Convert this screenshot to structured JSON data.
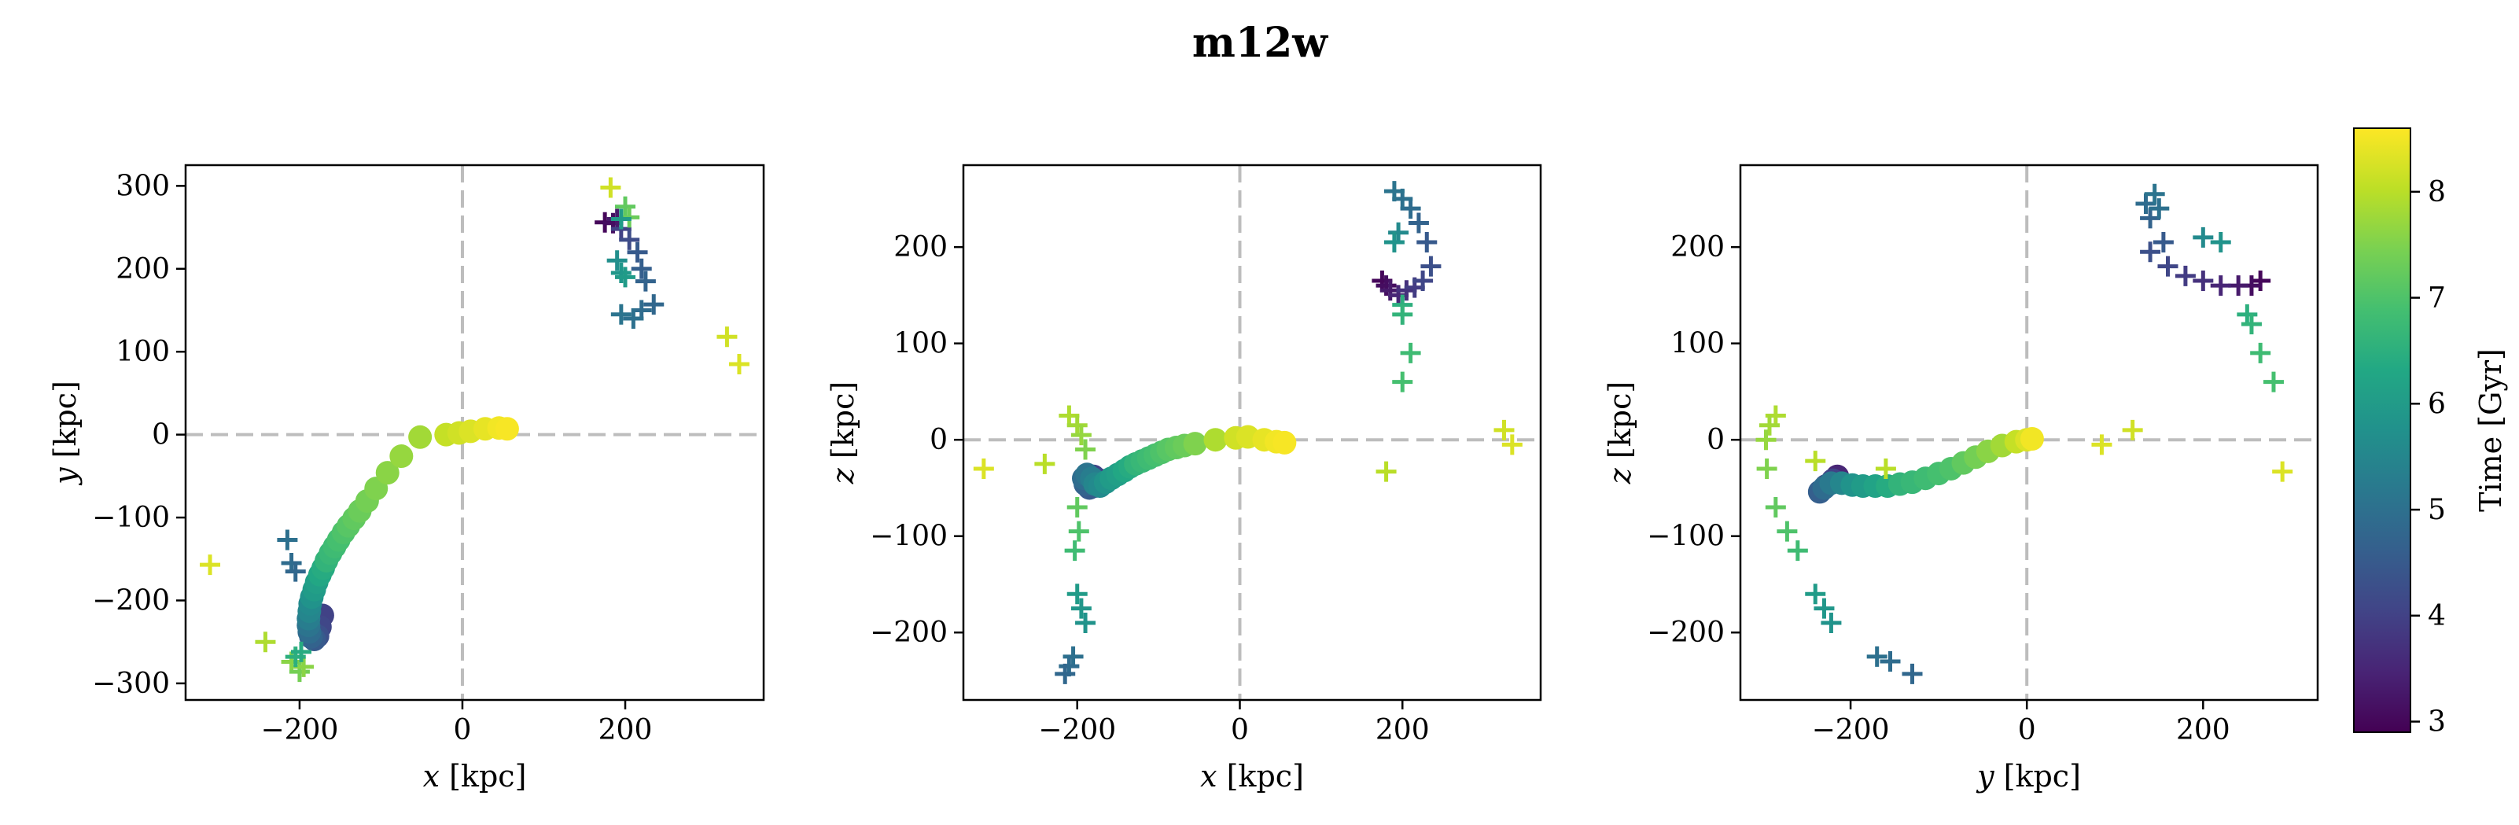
{
  "figure": {
    "title": "m12w"
  },
  "colorbar": {
    "label": "Time [Gyr]",
    "min": 2.9,
    "max": 8.6,
    "ticks": [
      3,
      4,
      5,
      6,
      7,
      8
    ],
    "colormap": "viridis"
  },
  "chart_data": [
    {
      "type": "scatter",
      "xlabel_var": "x",
      "xlabel_unit": " [kpc]",
      "ylabel_var": "y",
      "ylabel_unit": " [kpc]",
      "xlim": [
        -340,
        370
      ],
      "ylim": [
        -320,
        325
      ],
      "xticks": [
        -200,
        0,
        200
      ],
      "yticks": [
        -300,
        -200,
        -100,
        0,
        100,
        200,
        300
      ],
      "reference_lines": {
        "x": 0,
        "y": 0,
        "style": "dashed grey"
      },
      "series": [
        {
          "marker": "circle",
          "points": [
            [
              -172,
              -218,
              4.0
            ],
            [
              -175,
              -232,
              4.1
            ],
            [
              -178,
              -243,
              4.3
            ],
            [
              -182,
              -247,
              4.5
            ],
            [
              -186,
              -244,
              4.7
            ],
            [
              -188,
              -238,
              4.9
            ],
            [
              -189,
              -230,
              5.1
            ],
            [
              -189,
              -222,
              5.3
            ],
            [
              -188,
              -213,
              5.5
            ],
            [
              -187,
              -204,
              5.6
            ],
            [
              -185,
              -196,
              5.8
            ],
            [
              -182,
              -187,
              6.0
            ],
            [
              -179,
              -178,
              6.1
            ],
            [
              -175,
              -169,
              6.3
            ],
            [
              -171,
              -161,
              6.4
            ],
            [
              -167,
              -152,
              6.6
            ],
            [
              -162,
              -143,
              6.7
            ],
            [
              -157,
              -135,
              6.8
            ],
            [
              -152,
              -127,
              6.9
            ],
            [
              -146,
              -118,
              7.0
            ],
            [
              -140,
              -110,
              7.1
            ],
            [
              -133,
              -101,
              7.2
            ],
            [
              -126,
              -92,
              7.3
            ],
            [
              -117,
              -80,
              7.4
            ],
            [
              -106,
              -65,
              7.5
            ],
            [
              -92,
              -46,
              7.6
            ],
            [
              -75,
              -26,
              7.7
            ],
            [
              -52,
              -3,
              7.8
            ],
            [
              -20,
              0,
              8.1
            ],
            [
              -4,
              2,
              8.2
            ],
            [
              10,
              4,
              8.3
            ],
            [
              28,
              7,
              8.4
            ],
            [
              45,
              8,
              8.5
            ],
            [
              55,
              7,
              8.55
            ]
          ]
        },
        {
          "marker": "plus",
          "points": [
            [
              -310,
              -157,
              8.3
            ],
            [
              -242,
              -250,
              7.9
            ],
            [
              -210,
              -274,
              7.6
            ],
            [
              -200,
              -286,
              7.4
            ],
            [
              -195,
              -280,
              7.6
            ],
            [
              -205,
              -268,
              6.5
            ],
            [
              -198,
              -262,
              6.4
            ],
            [
              -215,
              -127,
              5.0
            ],
            [
              -210,
              -155,
              4.9
            ],
            [
              -205,
              -165,
              4.8
            ],
            [
              175,
              256,
              3.0
            ],
            [
              185,
              255,
              3.1
            ],
            [
              190,
              260,
              3.3
            ],
            [
              195,
              248,
              4.0
            ],
            [
              205,
              235,
              4.2
            ],
            [
              215,
              220,
              4.5
            ],
            [
              220,
              200,
              4.6
            ],
            [
              225,
              185,
              4.7
            ],
            [
              235,
              157,
              4.8
            ],
            [
              220,
              150,
              4.9
            ],
            [
              210,
              140,
              5.0
            ],
            [
              195,
              145,
              5.1
            ],
            [
              182,
              298,
              8.2
            ],
            [
              200,
              275,
              7.2
            ],
            [
              205,
              262,
              7.3
            ],
            [
              195,
              260,
              6.0
            ],
            [
              190,
              210,
              5.7
            ],
            [
              195,
              195,
              5.9
            ],
            [
              200,
              190,
              6.0
            ],
            [
              325,
              118,
              8.2
            ],
            [
              340,
              85,
              8.3
            ]
          ]
        }
      ]
    },
    {
      "type": "scatter",
      "xlabel_var": "x",
      "xlabel_unit": " [kpc]",
      "ylabel_var": "z",
      "ylabel_unit": " [kpc]",
      "xlim": [
        -340,
        370
      ],
      "ylim": [
        -270,
        285
      ],
      "xticks": [
        -200,
        0,
        200
      ],
      "yticks": [
        -200,
        -100,
        0,
        100,
        200
      ],
      "reference_lines": {
        "x": 0,
        "y": 0,
        "style": "dashed grey"
      },
      "series": [
        {
          "marker": "circle",
          "points": [
            [
              -180,
              -38,
              4.0
            ],
            [
              -172,
              -42,
              4.1
            ],
            [
              -178,
              -48,
              4.3
            ],
            [
              -185,
              -50,
              4.5
            ],
            [
              -190,
              -46,
              4.7
            ],
            [
              -192,
              -40,
              4.9
            ],
            [
              -188,
              -36,
              5.1
            ],
            [
              -182,
              -40,
              5.3
            ],
            [
              -178,
              -46,
              5.5
            ],
            [
              -172,
              -48,
              5.6
            ],
            [
              -165,
              -44,
              5.8
            ],
            [
              -158,
              -40,
              6.0
            ],
            [
              -150,
              -36,
              6.1
            ],
            [
              -142,
              -32,
              6.3
            ],
            [
              -135,
              -28,
              6.4
            ],
            [
              -128,
              -25,
              6.6
            ],
            [
              -120,
              -22,
              6.7
            ],
            [
              -112,
              -19,
              6.8
            ],
            [
              -104,
              -16,
              6.9
            ],
            [
              -96,
              -13,
              7.0
            ],
            [
              -88,
              -10,
              7.1
            ],
            [
              -78,
              -8,
              7.2
            ],
            [
              -68,
              -6,
              7.3
            ],
            [
              -55,
              -4,
              7.5
            ],
            [
              -30,
              0,
              7.9
            ],
            [
              -5,
              2,
              8.2
            ],
            [
              10,
              3,
              8.3
            ],
            [
              30,
              0,
              8.4
            ],
            [
              45,
              -2,
              8.5
            ],
            [
              55,
              -3,
              8.55
            ]
          ]
        },
        {
          "marker": "plus",
          "points": [
            [
              -315,
              -30,
              8.3
            ],
            [
              -240,
              -25,
              8.0
            ],
            [
              -210,
              25,
              7.9
            ],
            [
              -200,
              15,
              7.8
            ],
            [
              -195,
              5,
              7.7
            ],
            [
              -190,
              -10,
              7.5
            ],
            [
              -200,
              -70,
              7.2
            ],
            [
              -198,
              -95,
              7.0
            ],
            [
              -203,
              -115,
              6.8
            ],
            [
              -200,
              -160,
              6.0
            ],
            [
              -195,
              -175,
              5.9
            ],
            [
              -190,
              -190,
              5.8
            ],
            [
              -205,
              -225,
              5.0
            ],
            [
              -210,
              -235,
              4.9
            ],
            [
              -215,
              -243,
              4.8
            ],
            [
              175,
              165,
              3.0
            ],
            [
              180,
              160,
              3.1
            ],
            [
              185,
              155,
              3.3
            ],
            [
              195,
              150,
              3.5
            ],
            [
              205,
              155,
              3.7
            ],
            [
              215,
              158,
              3.9
            ],
            [
              225,
              165,
              4.1
            ],
            [
              235,
              180,
              4.3
            ],
            [
              230,
              205,
              4.5
            ],
            [
              220,
              225,
              4.7
            ],
            [
              210,
              240,
              4.9
            ],
            [
              200,
              250,
              5.0
            ],
            [
              190,
              258,
              5.1
            ],
            [
              195,
              215,
              5.6
            ],
            [
              190,
              205,
              5.8
            ],
            [
              200,
              140,
              6.5
            ],
            [
              200,
              130,
              6.6
            ],
            [
              210,
              90,
              6.8
            ],
            [
              200,
              60,
              6.9
            ],
            [
              180,
              -33,
              8.0
            ],
            [
              325,
              10,
              8.2
            ],
            [
              335,
              -5,
              8.3
            ]
          ]
        }
      ]
    },
    {
      "type": "scatter",
      "xlabel_var": "y",
      "xlabel_unit": " [kpc]",
      "ylabel_var": "z",
      "ylabel_unit": " [kpc]",
      "xlim": [
        -325,
        330
      ],
      "ylim": [
        -270,
        285
      ],
      "xticks": [
        -200,
        0,
        200
      ],
      "yticks": [
        -200,
        -100,
        0,
        100,
        200
      ],
      "reference_lines": {
        "x": 0,
        "y": 0,
        "style": "dashed grey"
      },
      "series": [
        {
          "marker": "circle",
          "points": [
            [
              -215,
              -38,
              3.5
            ],
            [
              -220,
              -42,
              4.0
            ],
            [
              -228,
              -48,
              4.3
            ],
            [
              -235,
              -54,
              4.6
            ],
            [
              -230,
              -50,
              4.9
            ],
            [
              -222,
              -45,
              5.2
            ],
            [
              -210,
              -45,
              5.5
            ],
            [
              -198,
              -47,
              5.8
            ],
            [
              -186,
              -48,
              6.0
            ],
            [
              -172,
              -48,
              6.2
            ],
            [
              -158,
              -48,
              6.4
            ],
            [
              -144,
              -46,
              6.6
            ],
            [
              -130,
              -44,
              6.7
            ],
            [
              -115,
              -40,
              6.8
            ],
            [
              -100,
              -35,
              6.9
            ],
            [
              -86,
              -30,
              7.0
            ],
            [
              -72,
              -24,
              7.2
            ],
            [
              -58,
              -18,
              7.4
            ],
            [
              -44,
              -12,
              7.6
            ],
            [
              -28,
              -6,
              7.8
            ],
            [
              -12,
              -2,
              8.1
            ],
            [
              0,
              0,
              8.3
            ],
            [
              6,
              1,
              8.5
            ]
          ]
        },
        {
          "marker": "plus",
          "points": [
            [
              -285,
              25,
              7.9
            ],
            [
              -292,
              15,
              7.8
            ],
            [
              -296,
              0,
              7.7
            ],
            [
              -295,
              -30,
              7.5
            ],
            [
              -285,
              -70,
              7.2
            ],
            [
              -272,
              -95,
              7.0
            ],
            [
              -260,
              -115,
              6.8
            ],
            [
              -240,
              -160,
              6.0
            ],
            [
              -230,
              -175,
              5.9
            ],
            [
              -222,
              -190,
              5.8
            ],
            [
              -170,
              -225,
              5.0
            ],
            [
              -155,
              -230,
              4.9
            ],
            [
              -130,
              -243,
              4.8
            ],
            [
              -240,
              -22,
              8.0
            ],
            [
              -160,
              -30,
              8.0
            ],
            [
              120,
              10,
              8.2
            ],
            [
              85,
              -5,
              8.3
            ],
            [
              290,
              -33,
              8.3
            ],
            [
              265,
              165,
              3.0
            ],
            [
              255,
              160,
              3.1
            ],
            [
              240,
              160,
              3.3
            ],
            [
              220,
              160,
              3.5
            ],
            [
              200,
              165,
              3.7
            ],
            [
              180,
              170,
              3.9
            ],
            [
              160,
              180,
              4.1
            ],
            [
              140,
              195,
              4.3
            ],
            [
              155,
              205,
              4.5
            ],
            [
              140,
              230,
              4.7
            ],
            [
              135,
              245,
              4.9
            ],
            [
              150,
              240,
              5.0
            ],
            [
              145,
              255,
              5.1
            ],
            [
              200,
              210,
              5.6
            ],
            [
              220,
              205,
              5.8
            ],
            [
              250,
              130,
              6.5
            ],
            [
              255,
              120,
              6.6
            ],
            [
              265,
              90,
              6.8
            ],
            [
              280,
              60,
              6.9
            ]
          ]
        }
      ]
    }
  ]
}
